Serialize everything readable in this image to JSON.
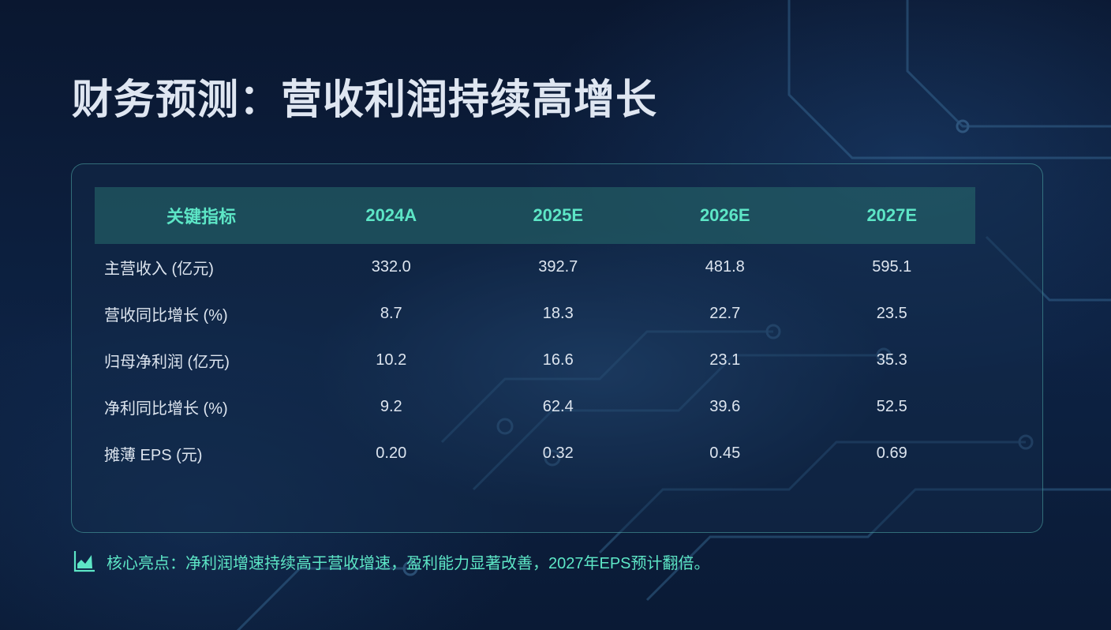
{
  "title": "财务预测：营收利润持续高增长",
  "table": {
    "headers": [
      "关键指标",
      "2024A",
      "2025E",
      "2026E",
      "2027E"
    ],
    "rows": [
      {
        "label": "主营收入 (亿元)",
        "values": [
          "332.0",
          "392.7",
          "481.8",
          "595.1"
        ]
      },
      {
        "label": "营收同比增长 (%)",
        "values": [
          "8.7",
          "18.3",
          "22.7",
          "23.5"
        ]
      },
      {
        "label": "归母净利润 (亿元)",
        "values": [
          "10.2",
          "16.6",
          "23.1",
          "35.3"
        ]
      },
      {
        "label": "净利同比增长 (%)",
        "values": [
          "9.2",
          "62.4",
          "39.6",
          "52.5"
        ]
      },
      {
        "label": "摊薄 EPS (元)",
        "values": [
          "0.20",
          "0.32",
          "0.45",
          "0.69"
        ]
      }
    ]
  },
  "highlight": {
    "icon": "area-chart-icon",
    "text": "核心亮点：净利润增速持续高于营收增速，盈利能力显著改善，2027年EPS预计翻倍。"
  },
  "colors": {
    "accent": "#5de6c6",
    "title": "#dfe6f1",
    "body_text": "#dde5ef",
    "background": "#0b1a33"
  }
}
